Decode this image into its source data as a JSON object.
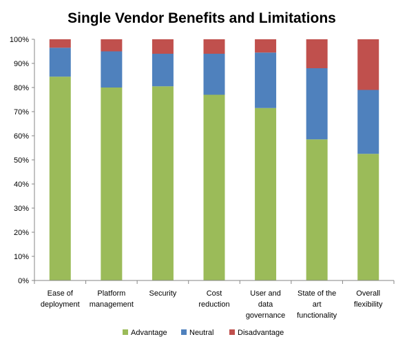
{
  "chart_data": {
    "type": "bar",
    "stacked": true,
    "title": "Single Vendor Benefits and Limitations",
    "xlabel": "",
    "ylabel": "",
    "ylim": [
      0,
      100
    ],
    "y_ticks": [
      "0%",
      "10%",
      "20%",
      "30%",
      "40%",
      "50%",
      "60%",
      "70%",
      "80%",
      "90%",
      "100%"
    ],
    "categories": [
      [
        "Ease of",
        "deployment"
      ],
      [
        "Platform",
        "management"
      ],
      [
        "Security"
      ],
      [
        "Cost",
        "reduction"
      ],
      [
        "User and",
        "data",
        "governance"
      ],
      [
        "State of the",
        "art",
        "functionality"
      ],
      [
        "Overall",
        "flexibility"
      ]
    ],
    "series": [
      {
        "name": "Advantage",
        "color": "#9bbb59",
        "values": [
          84.5,
          80,
          80.5,
          77,
          71.5,
          58.5,
          52.5
        ]
      },
      {
        "name": "Neutral",
        "color": "#4f81bd",
        "values": [
          12,
          15,
          13.5,
          17,
          23,
          29.5,
          26.5
        ]
      },
      {
        "name": "Disadvantage",
        "color": "#c0504d",
        "values": [
          3.5,
          5,
          6,
          6,
          5.5,
          12,
          21
        ]
      }
    ],
    "grid": false,
    "legend_position": "bottom"
  }
}
